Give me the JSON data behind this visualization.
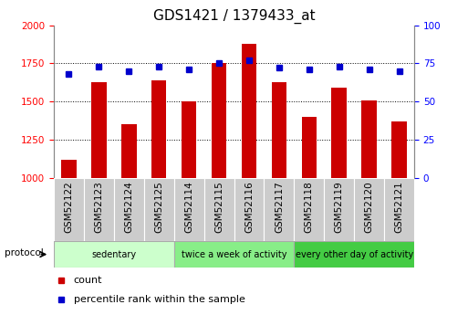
{
  "title": "GDS1421 / 1379433_at",
  "categories": [
    "GSM52122",
    "GSM52123",
    "GSM52124",
    "GSM52125",
    "GSM52114",
    "GSM52115",
    "GSM52116",
    "GSM52117",
    "GSM52118",
    "GSM52119",
    "GSM52120",
    "GSM52121"
  ],
  "bar_values": [
    1120,
    1630,
    1350,
    1640,
    1500,
    1750,
    1880,
    1630,
    1400,
    1590,
    1510,
    1370
  ],
  "percentile_values": [
    68,
    73,
    70,
    73,
    71,
    75,
    77,
    72,
    71,
    73,
    71,
    70
  ],
  "ylim_left": [
    1000,
    2000
  ],
  "ylim_right": [
    0,
    100
  ],
  "yticks_left": [
    1000,
    1250,
    1500,
    1750,
    2000
  ],
  "yticks_right": [
    0,
    25,
    50,
    75,
    100
  ],
  "bar_color": "#cc0000",
  "dot_color": "#0000cc",
  "groups": [
    {
      "label": "sedentary",
      "start": 0,
      "end": 4,
      "color": "#ccffcc"
    },
    {
      "label": "twice a week of activity",
      "start": 4,
      "end": 8,
      "color": "#88ee88"
    },
    {
      "label": "every other day of activity",
      "start": 8,
      "end": 12,
      "color": "#44cc44"
    }
  ],
  "legend_items": [
    {
      "label": "count",
      "color": "#cc0000"
    },
    {
      "label": "percentile rank within the sample",
      "color": "#0000cc"
    }
  ],
  "protocol_label": "protocol",
  "cell_color": "#cccccc",
  "tick_label_fontsize": 7.5,
  "title_fontsize": 11
}
